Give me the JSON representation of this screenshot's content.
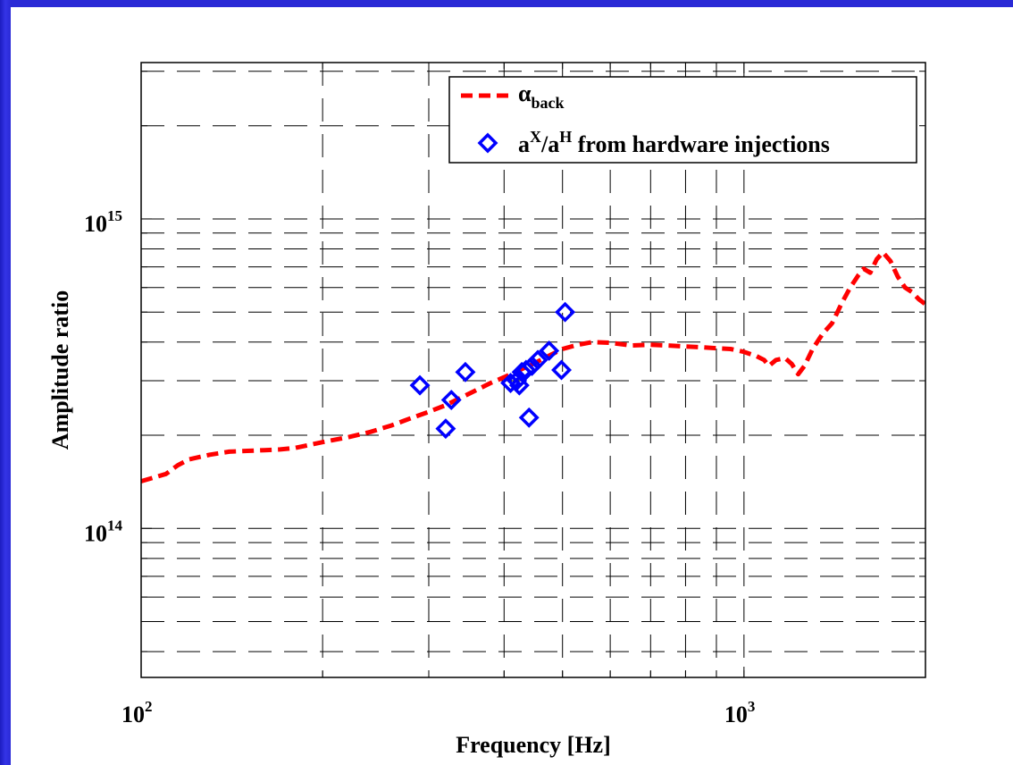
{
  "chart_data": {
    "type": "line",
    "xlabel": "Frequency [Hz]",
    "ylabel": "Amplitude ratio",
    "xscale": "log",
    "yscale": "log",
    "xlim": [
      100,
      2000
    ],
    "ylim": [
      33000000000000.0,
      3200000000000000.0
    ],
    "grid": true,
    "legend_position": "top-right",
    "x_tick_labels": [
      {
        "value": 100,
        "base": "10",
        "exp": "2"
      },
      {
        "value": 1000,
        "base": "10",
        "exp": "3"
      }
    ],
    "y_tick_labels": [
      {
        "value": 100000000000000.0,
        "base": "10",
        "exp": "14"
      },
      {
        "value": 1000000000000000.0,
        "base": "10",
        "exp": "15"
      }
    ],
    "series": [
      {
        "name_main": "α",
        "name_sub": "back",
        "kind": "line",
        "style": "dashed",
        "color": "#ff0000",
        "points": [
          [
            100,
            142000000000000.0
          ],
          [
            105,
            146000000000000.0
          ],
          [
            110,
            150000000000000.0
          ],
          [
            115,
            160000000000000.0
          ],
          [
            120,
            167000000000000.0
          ],
          [
            130,
            173000000000000.0
          ],
          [
            140,
            177000000000000.0
          ],
          [
            150,
            178000000000000.0
          ],
          [
            160,
            179000000000000.0
          ],
          [
            170,
            180000000000000.0
          ],
          [
            180,
            182000000000000.0
          ],
          [
            190,
            186000000000000.0
          ],
          [
            200,
            190000000000000.0
          ],
          [
            220,
            197000000000000.0
          ],
          [
            240,
            205000000000000.0
          ],
          [
            260,
            215000000000000.0
          ],
          [
            280,
            227000000000000.0
          ],
          [
            300,
            238000000000000.0
          ],
          [
            320,
            250000000000000.0
          ],
          [
            340,
            265000000000000.0
          ],
          [
            360,
            280000000000000.0
          ],
          [
            380,
            295000000000000.0
          ],
          [
            400,
            308000000000000.0
          ],
          [
            420,
            322000000000000.0
          ],
          [
            440,
            335000000000000.0
          ],
          [
            460,
            350000000000000.0
          ],
          [
            480,
            365000000000000.0
          ],
          [
            500,
            380000000000000.0
          ],
          [
            530,
            392000000000000.0
          ],
          [
            560,
            400000000000000.0
          ],
          [
            600,
            398000000000000.0
          ],
          [
            650,
            390000000000000.0
          ],
          [
            700,
            392000000000000.0
          ],
          [
            750,
            390000000000000.0
          ],
          [
            800,
            387000000000000.0
          ],
          [
            850,
            385000000000000.0
          ],
          [
            900,
            382000000000000.0
          ],
          [
            950,
            380000000000000.0
          ],
          [
            1000,
            372000000000000.0
          ],
          [
            1050,
            360000000000000.0
          ],
          [
            1080,
            350000000000000.0
          ],
          [
            1100,
            335000000000000.0
          ],
          [
            1130,
            350000000000000.0
          ],
          [
            1170,
            355000000000000.0
          ],
          [
            1200,
            340000000000000.0
          ],
          [
            1230,
            315000000000000.0
          ],
          [
            1260,
            335000000000000.0
          ],
          [
            1300,
            380000000000000.0
          ],
          [
            1350,
            425000000000000.0
          ],
          [
            1400,
            460000000000000.0
          ],
          [
            1450,
            530000000000000.0
          ],
          [
            1500,
            600000000000000.0
          ],
          [
            1550,
            660000000000000.0
          ],
          [
            1580,
            690000000000000.0
          ],
          [
            1620,
            670000000000000.0
          ],
          [
            1660,
            740000000000000.0
          ],
          [
            1700,
            780000000000000.0
          ],
          [
            1750,
            730000000000000.0
          ],
          [
            1800,
            650000000000000.0
          ],
          [
            1850,
            600000000000000.0
          ],
          [
            1900,
            580000000000000.0
          ],
          [
            1950,
            550000000000000.0
          ],
          [
            2000,
            530000000000000.0
          ]
        ]
      },
      {
        "name_main": "a",
        "name_sup1": "X",
        "name_mid": "/a",
        "name_sup2": "H",
        "name_tail": " from hardware injections",
        "kind": "scatter",
        "marker": "diamond",
        "color": "#0000ff",
        "points": [
          [
            290,
            290000000000000.0
          ],
          [
            320,
            210000000000000.0
          ],
          [
            327,
            260000000000000.0
          ],
          [
            345,
            320000000000000.0
          ],
          [
            410,
            295000000000000.0
          ],
          [
            420,
            300000000000000.0
          ],
          [
            424,
            290000000000000.0
          ],
          [
            428,
            320000000000000.0
          ],
          [
            435,
            325000000000000.0
          ],
          [
            440,
            228000000000000.0
          ],
          [
            445,
            335000000000000.0
          ],
          [
            455,
            350000000000000.0
          ],
          [
            475,
            375000000000000.0
          ],
          [
            498,
            325000000000000.0
          ],
          [
            505,
            500000000000000.0
          ]
        ]
      }
    ]
  }
}
